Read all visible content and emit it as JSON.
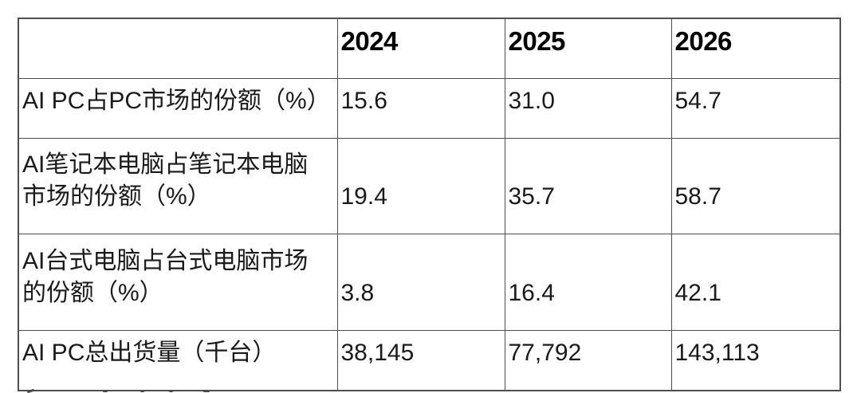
{
  "table": {
    "columns": [
      "",
      "2024",
      "2025",
      "2026"
    ],
    "rows": [
      {
        "label": "AI PC占PC市场的份额（%）",
        "values": [
          "15.6",
          "31.0",
          "54.7"
        ]
      },
      {
        "label": "AI笔记本电脑占笔记本电脑\n市场的份额（%）",
        "values": [
          "19.4",
          "35.7",
          "58.7"
        ]
      },
      {
        "label": "AI台式电脑占台式电脑市场\n的份额（%）",
        "values": [
          "3.8",
          "16.4",
          "42.1"
        ]
      },
      {
        "label": "AI PC总出货量（千台）",
        "values": [
          "38,145",
          "77,792",
          "143,113"
        ]
      }
    ]
  },
  "chart_data": {
    "type": "table",
    "categories": [
      "2024",
      "2025",
      "2026"
    ],
    "series": [
      {
        "name": "AI PC占PC市场的份额（%）",
        "values": [
          15.6,
          31.0,
          54.7
        ]
      },
      {
        "name": "AI笔记本电脑占笔记本电脑市场的份额（%）",
        "values": [
          19.4,
          35.7,
          58.7
        ]
      },
      {
        "name": "AI台式电脑占台式电脑市场的份额（%）",
        "values": [
          3.8,
          16.4,
          42.1
        ]
      },
      {
        "name": "AI PC总出货量（千台）",
        "values": [
          38145,
          77792,
          143113
        ]
      }
    ],
    "title": "",
    "legend_position": "none",
    "grid": true
  },
  "colors": {
    "background": "#ffffff",
    "border": "#4f4f4f",
    "text": "#1a1a1a",
    "header_text": "#000000"
  }
}
